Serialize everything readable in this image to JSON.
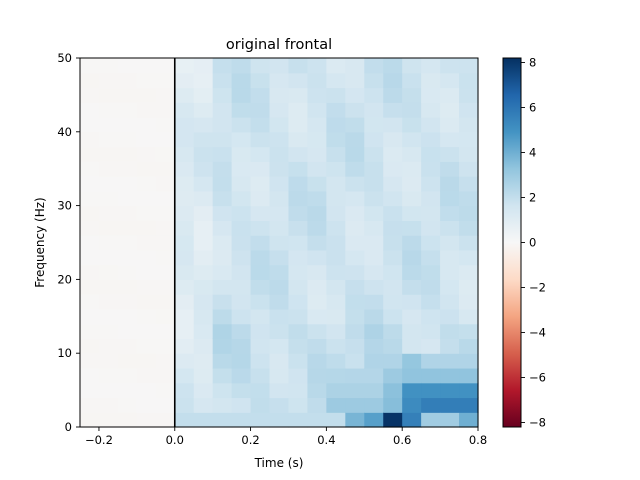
{
  "chart_data": {
    "type": "heatmap",
    "title": "original frontal",
    "xlabel": "Time (s)",
    "ylabel": "Frequency (Hz)",
    "xlim": [
      -0.25,
      0.8
    ],
    "ylim": [
      0,
      50
    ],
    "xticks": [
      -0.2,
      0.0,
      0.2,
      0.4,
      0.6,
      0.8
    ],
    "xtick_labels": [
      "−0.2",
      "0.0",
      "0.2",
      "0.4",
      "0.6",
      "0.8"
    ],
    "yticks": [
      0,
      10,
      20,
      30,
      40,
      50
    ],
    "ytick_labels": [
      "0",
      "10",
      "20",
      "30",
      "40",
      "50"
    ],
    "event_line_x": 0.0,
    "colormap": "RdBu_r",
    "colorbar": {
      "vmin": -8.2,
      "vmax": 8.2,
      "ticks": [
        -8,
        -6,
        -4,
        -2,
        0,
        2,
        4,
        6,
        8
      ],
      "tick_labels": [
        "−8",
        "−6",
        "−4",
        "−2",
        "0",
        "2",
        "4",
        "6",
        "8"
      ]
    },
    "grid": {
      "t_start": -0.25,
      "t_step": 0.05,
      "n_time": 21,
      "f_start": 0,
      "f_step": 2,
      "n_freq": 25,
      "note": "values estimated from the color map; baseline period (t<0) is ~0, post-stimulus ~1.5-2.5 with a strong low-frequency increase after 0.45 s"
    }
  }
}
